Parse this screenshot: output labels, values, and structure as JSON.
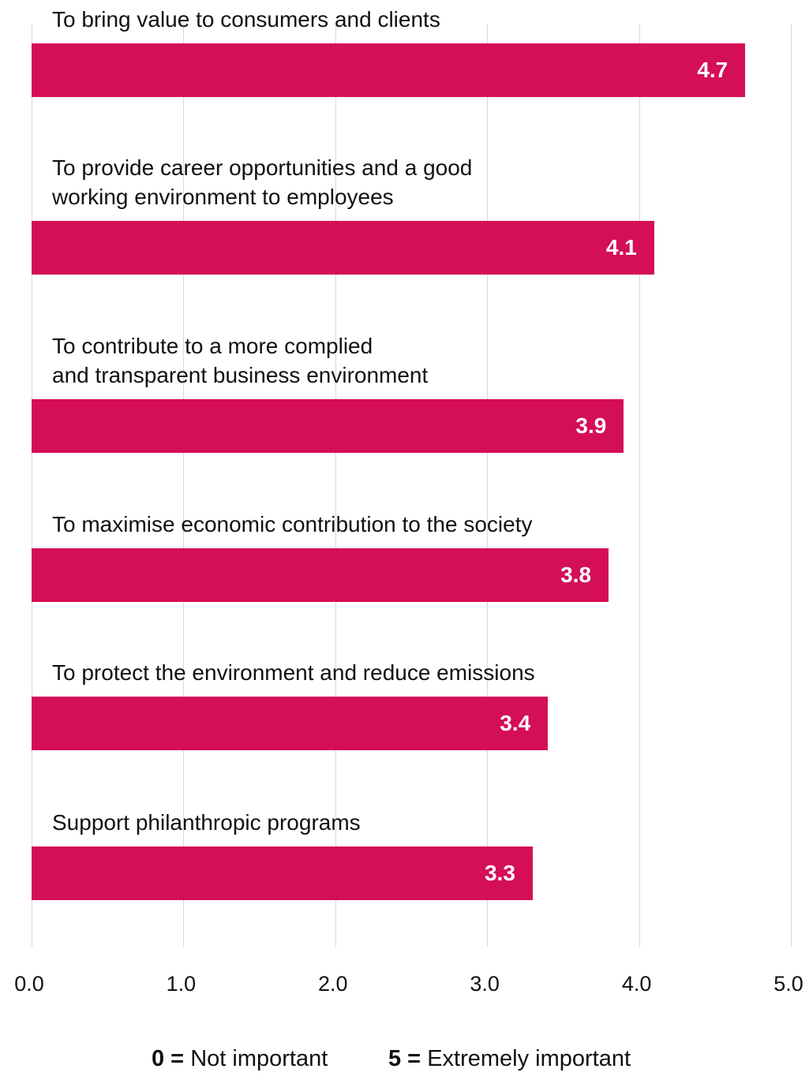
{
  "chart_data": {
    "type": "bar",
    "orientation": "horizontal",
    "categories": [
      [
        "To bring value to consumers and clients"
      ],
      [
        "To provide career opportunities and a good",
        "working environment to employees"
      ],
      [
        "To contribute to a more complied",
        "and transparent business environment"
      ],
      [
        "To maximise economic contribution to the society"
      ],
      [
        "To protect the environment and reduce emissions"
      ],
      [
        "Support philanthropic programs"
      ]
    ],
    "values": [
      4.7,
      4.1,
      3.9,
      3.8,
      3.4,
      3.3
    ],
    "value_labels": [
      "4.7",
      "4.1",
      "3.9",
      "3.8",
      "3.4",
      "3.3"
    ],
    "xlim": [
      0,
      5
    ],
    "xticks": [
      "0.0",
      "1.0",
      "2.0",
      "3.0",
      "4.0",
      "5.0"
    ],
    "grid": true,
    "bar_color": "#D40E57",
    "legend": [
      {
        "key": "0 =",
        "text": "Not important"
      },
      {
        "key": "5 =",
        "text": "Extremely important"
      }
    ]
  }
}
